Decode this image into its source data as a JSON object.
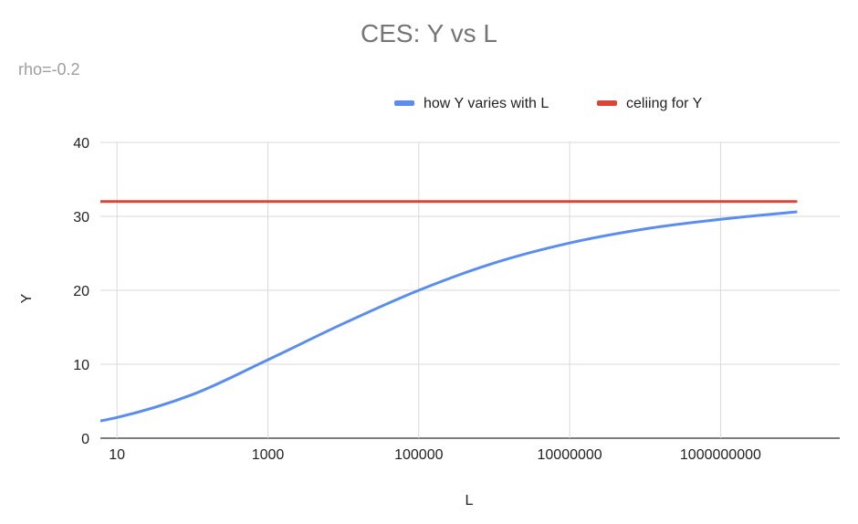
{
  "chart_data": {
    "type": "line",
    "title": "CES: Y vs L",
    "subtitle": "rho=-0.2",
    "xlabel": "L",
    "ylabel": "Y",
    "x_scale": "log10",
    "xlim": [
      1,
      10000000000
    ],
    "ylim": [
      0,
      40
    ],
    "x_ticks": [
      10,
      1000,
      100000,
      10000000,
      1000000000
    ],
    "x_tick_labels": [
      "10",
      "1000",
      "100000",
      "10000000",
      "1000000000"
    ],
    "y_ticks": [
      0,
      10,
      20,
      30,
      40
    ],
    "y_tick_labels": [
      "0",
      "10",
      "20",
      "30",
      "40"
    ],
    "grid": true,
    "legend_position": "top",
    "series": [
      {
        "name": "how Y varies with L",
        "color": "#5b8def",
        "x": [
          1,
          10,
          100,
          1000,
          10000,
          100000,
          1000000,
          10000000,
          100000000,
          1000000000,
          10000000000
        ],
        "y": [
          1.1,
          2.8,
          5.9,
          10.6,
          15.5,
          20.0,
          23.7,
          26.4,
          28.3,
          29.6,
          30.6
        ]
      },
      {
        "name": "celiing for Y",
        "color": "#db4437",
        "x": [
          1,
          10000000000
        ],
        "y": [
          32,
          32
        ]
      }
    ]
  }
}
